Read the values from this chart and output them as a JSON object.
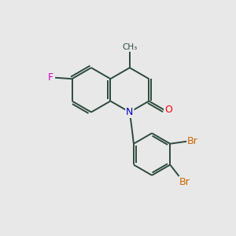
{
  "background_color": "#e8e8e8",
  "bond_color": "#2d4a3e",
  "atom_colors": {
    "F": "#cc00cc",
    "N": "#0000cc",
    "O": "#ff0000",
    "Br": "#cc6600",
    "C": "#2d4a3e"
  },
  "figsize": [
    3.0,
    3.0
  ],
  "dpi": 100,
  "bond_lw": 1.4
}
